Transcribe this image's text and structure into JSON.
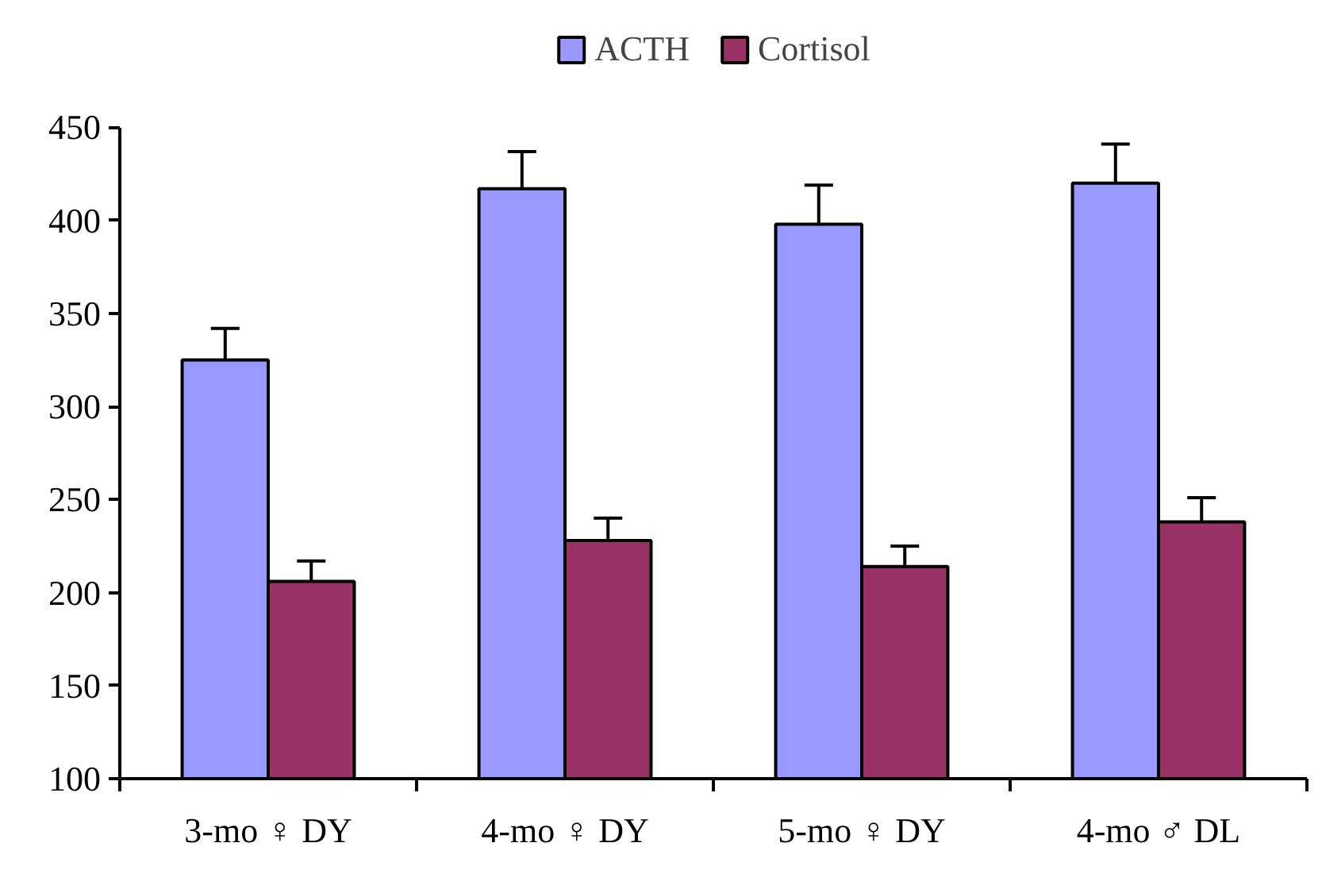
{
  "chart_data": {
    "type": "bar",
    "categories": [
      "3-mo ♀ DY",
      "4-mo ♀ DY",
      "5-mo ♀ DY",
      "4-mo ♂ DL"
    ],
    "series": [
      {
        "name": "ACTH",
        "color": "#9999ff",
        "values": [
          325,
          417,
          398,
          420
        ],
        "errors": [
          [
            325,
            342
          ],
          [
            417,
            437
          ],
          [
            398,
            419
          ],
          [
            420,
            441
          ]
        ]
      },
      {
        "name": "Cortisol",
        "color": "#993366",
        "values": [
          206,
          228,
          214,
          238
        ],
        "errors": [
          [
            206,
            217
          ],
          [
            228,
            240
          ],
          [
            214,
            225
          ],
          [
            238,
            251
          ]
        ]
      }
    ],
    "ylim": [
      100,
      450
    ],
    "yticks": [
      100,
      150,
      200,
      250,
      300,
      350,
      400,
      450
    ],
    "grid": false,
    "legend": "top"
  }
}
